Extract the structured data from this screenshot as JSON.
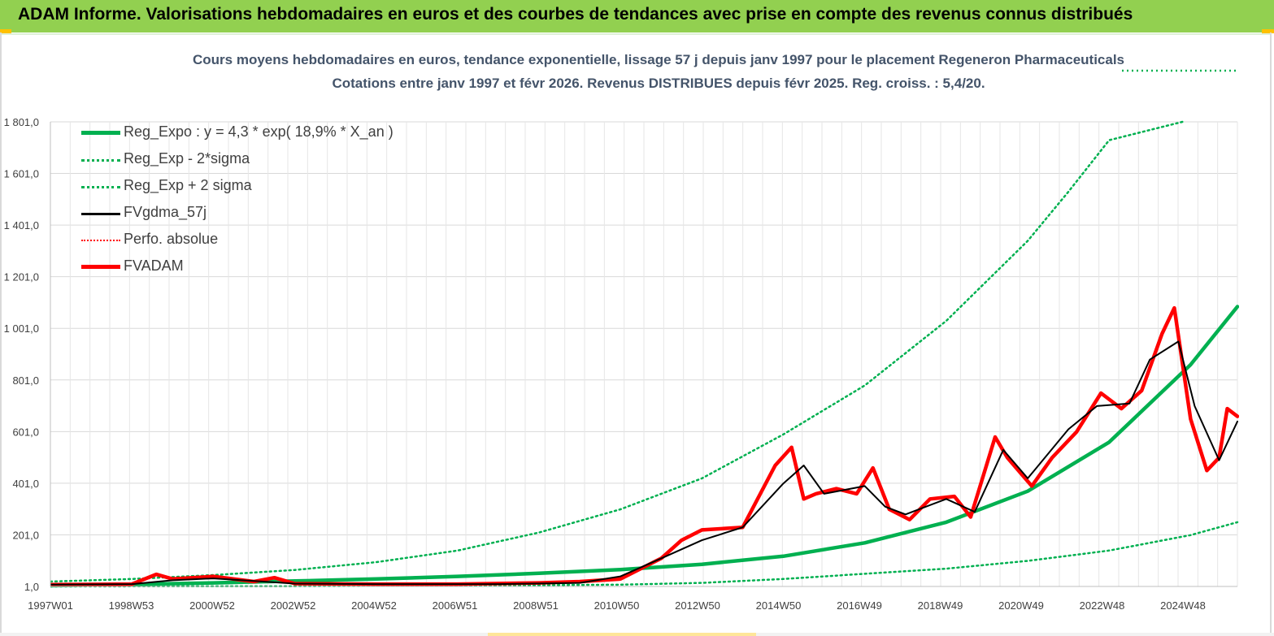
{
  "banner": {
    "title": "ADAM Informe. Valorisations hebdomadaires en euros et des courbes de tendances avec prise en compte des revenus connus distribués",
    "color": "#92d050"
  },
  "chart_data": {
    "type": "line",
    "title": "Cours moyens hebdomadaires en euros, tendance exponentielle, lissage 57 j depuis janv 1997  pour le placement Regeneron Pharmaceuticals",
    "subtitle": "Cotations entre janv 1997  et févr  2026.  Revenus DISTRIBUES  depuis févr 2025.  Reg. croiss. : 5,4/20.",
    "xlabel": "",
    "ylabel": "",
    "ylim": [
      1,
      1801
    ],
    "xlim": [
      1997.0,
      2026.15
    ],
    "grid": true,
    "legend_position": "top-left",
    "y_ticks": [
      "1 801,0",
      "1 601,0",
      "1 401,0",
      "1 201,0",
      "1 001,0",
      "801,0",
      "601,0",
      "401,0",
      "201,0",
      "1,0"
    ],
    "x_ticks": [
      "1997W01",
      "1998W53",
      "2000W52",
      "2002W52",
      "2004W52",
      "2006W51",
      "2008W51",
      "2010W50",
      "2012W50",
      "2014W50",
      "2016W49",
      "2018W49",
      "2020W49",
      "2022W48",
      "2024W48"
    ],
    "regression": {
      "a": 4.3,
      "rate": 0.189
    },
    "series": [
      {
        "name": "Reg_Expo : y = 4,3 * exp( 18,9% *  X_an )",
        "color": "#00b050",
        "style": "solid-thick",
        "x": [
          1997,
          1999,
          2001,
          2003,
          2005,
          2007,
          2009,
          2011,
          2013,
          2015,
          2017,
          2019,
          2021,
          2023,
          2025,
          2026.15
        ],
        "values": [
          4,
          9,
          15,
          22,
          30,
          40,
          52,
          66,
          87,
          118,
          170,
          250,
          370,
          560,
          860,
          1085
        ]
      },
      {
        "name": "Reg_Exp - 2*sigma",
        "color": "#00b050",
        "style": "dotted",
        "x": [
          1997,
          2000,
          2003,
          2006,
          2009,
          2011,
          2013,
          2015,
          2017,
          2019,
          2021,
          2023,
          2025,
          2026.15
        ],
        "values": [
          1,
          2,
          2,
          4,
          6,
          8,
          15,
          30,
          50,
          70,
          100,
          140,
          200,
          250
        ]
      },
      {
        "name": "Reg_Exp + 2 sigma",
        "color": "#00b050",
        "style": "dotted",
        "x": [
          1997,
          1999,
          2001,
          2003,
          2005,
          2007,
          2009,
          2011,
          2013,
          2015,
          2017,
          2019,
          2021,
          2022,
          2023,
          2024.8
        ],
        "values": [
          20,
          30,
          45,
          65,
          95,
          140,
          210,
          300,
          420,
          590,
          780,
          1030,
          1340,
          1530,
          1730,
          1801
        ]
      },
      {
        "name": "FVgdma_57j",
        "color": "#000000",
        "style": "solid",
        "x": [
          1997,
          1999,
          2000,
          2001,
          2002,
          2003,
          2005,
          2008,
          2010,
          2011,
          2012,
          2013,
          2014,
          2015,
          2015.5,
          2016,
          2017,
          2017.5,
          2018,
          2019,
          2019.7,
          2020.4,
          2021,
          2022,
          2022.7,
          2023.5,
          2024,
          2024.7,
          2025.1,
          2025.7,
          2026.15
        ],
        "values": [
          8,
          10,
          25,
          32,
          22,
          12,
          10,
          10,
          15,
          40,
          110,
          180,
          230,
          400,
          470,
          360,
          390,
          310,
          280,
          340,
          290,
          530,
          420,
          610,
          700,
          710,
          880,
          950,
          700,
          490,
          640
        ]
      },
      {
        "name": "Perfo. absolue",
        "color": "#ff0000",
        "style": "dotted",
        "x": [],
        "values": []
      },
      {
        "name": "FVADAM",
        "color": "#ff0000",
        "style": "solid-thick",
        "x": [
          1997,
          1999,
          1999.6,
          2000,
          2001,
          2002,
          2002.5,
          2003,
          2005,
          2007,
          2009,
          2010,
          2011,
          2012,
          2012.5,
          2013,
          2014,
          2014.8,
          2015.2,
          2015.5,
          2015.8,
          2016.3,
          2016.8,
          2017.2,
          2017.6,
          2018.1,
          2018.6,
          2019.2,
          2019.6,
          2020.2,
          2020.5,
          2021.1,
          2021.6,
          2022.2,
          2022.8,
          2023.3,
          2023.8,
          2024.3,
          2024.6,
          2025.0,
          2025.4,
          2025.7,
          2025.9,
          2026.15
        ],
        "values": [
          8,
          10,
          48,
          30,
          40,
          20,
          35,
          12,
          10,
          10,
          15,
          20,
          30,
          110,
          180,
          220,
          230,
          470,
          540,
          340,
          360,
          380,
          360,
          460,
          300,
          260,
          340,
          350,
          270,
          580,
          500,
          390,
          500,
          600,
          750,
          690,
          760,
          980,
          1080,
          650,
          450,
          500,
          690,
          660
        ]
      }
    ]
  }
}
